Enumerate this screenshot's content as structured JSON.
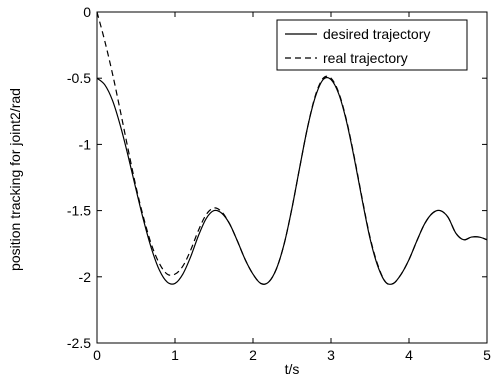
{
  "chart_data": {
    "type": "line",
    "xlabel": "t/s",
    "ylabel": "position tracking for joint2/rad",
    "xlim": [
      0,
      5
    ],
    "ylim": [
      -2.5,
      0
    ],
    "xticks": [
      0,
      1,
      2,
      3,
      4,
      5
    ],
    "xtick_labels": [
      "0",
      "1",
      "2",
      "3",
      "4",
      "5"
    ],
    "yticks": [
      -2.5,
      -2,
      -1.5,
      -1,
      -0.5,
      0
    ],
    "ytick_labels": [
      "-2.5",
      "-2",
      "-1.5",
      "-1",
      "-0.5",
      "0"
    ],
    "grid": false,
    "legend_position": "top-right",
    "series": [
      {
        "name": "desired trajectory",
        "style": "solid",
        "color": "#000000",
        "x": [
          0,
          0.1,
          0.2,
          0.3,
          0.4,
          0.5,
          0.6,
          0.7,
          0.8,
          0.9,
          1.0,
          1.1,
          1.2,
          1.3,
          1.4,
          1.5,
          1.6,
          1.7,
          1.8,
          1.9,
          2.0,
          2.1,
          2.2,
          2.3,
          2.4,
          2.5,
          2.6,
          2.7,
          2.8,
          2.9,
          3.0,
          3.1,
          3.2,
          3.3,
          3.4,
          3.5,
          3.6,
          3.7,
          3.8,
          3.9,
          4.0,
          4.1,
          4.2,
          4.3,
          4.4,
          4.5,
          4.6,
          4.7,
          4.8,
          4.9,
          5.0
        ],
        "y": [
          -0.5,
          -0.55,
          -0.67,
          -0.86,
          -1.09,
          -1.34,
          -1.58,
          -1.79,
          -1.95,
          -2.04,
          -2.05,
          -1.98,
          -1.85,
          -1.69,
          -1.56,
          -1.5,
          -1.52,
          -1.6,
          -1.73,
          -1.87,
          -1.98,
          -2.05,
          -2.04,
          -1.94,
          -1.75,
          -1.48,
          -1.17,
          -0.87,
          -0.64,
          -0.51,
          -0.51,
          -0.62,
          -0.83,
          -1.11,
          -1.42,
          -1.71,
          -1.92,
          -2.04,
          -2.05,
          -1.98,
          -1.87,
          -1.73,
          -1.6,
          -1.52,
          -1.5,
          -1.55,
          -1.67,
          -1.72,
          -1.7,
          -1.7,
          -1.72
        ]
      },
      {
        "name": "real trajectory",
        "style": "dashed",
        "color": "#000000",
        "x": [
          0,
          0.1,
          0.2,
          0.3,
          0.4,
          0.5,
          0.6,
          0.7,
          0.8,
          0.9,
          1.0,
          1.1,
          1.2,
          1.3,
          1.4,
          1.5,
          1.6,
          1.7,
          1.8,
          1.9,
          2.0,
          2.1,
          2.2,
          2.3,
          2.4,
          2.5,
          2.6,
          2.7,
          2.8,
          2.9,
          3.0,
          3.1,
          3.2,
          3.3,
          3.4,
          3.5,
          3.6,
          3.7,
          3.8,
          3.9,
          4.0,
          4.1,
          4.2,
          4.3,
          4.4,
          4.5,
          4.6,
          4.7,
          4.8,
          4.9,
          5.0
        ],
        "y": [
          0.0,
          -0.22,
          -0.47,
          -0.75,
          -1.04,
          -1.32,
          -1.56,
          -1.76,
          -1.9,
          -1.98,
          -1.98,
          -1.92,
          -1.8,
          -1.65,
          -1.53,
          -1.48,
          -1.51,
          -1.6,
          -1.73,
          -1.87,
          -1.98,
          -2.05,
          -2.04,
          -1.94,
          -1.75,
          -1.48,
          -1.17,
          -0.87,
          -0.63,
          -0.5,
          -0.5,
          -0.61,
          -0.82,
          -1.1,
          -1.41,
          -1.7,
          -1.91,
          -2.04,
          -2.05,
          -1.98,
          -1.87,
          -1.73,
          -1.6,
          -1.52,
          -1.5,
          -1.55,
          -1.67,
          -1.72,
          -1.7,
          -1.7,
          -1.72
        ]
      }
    ]
  }
}
